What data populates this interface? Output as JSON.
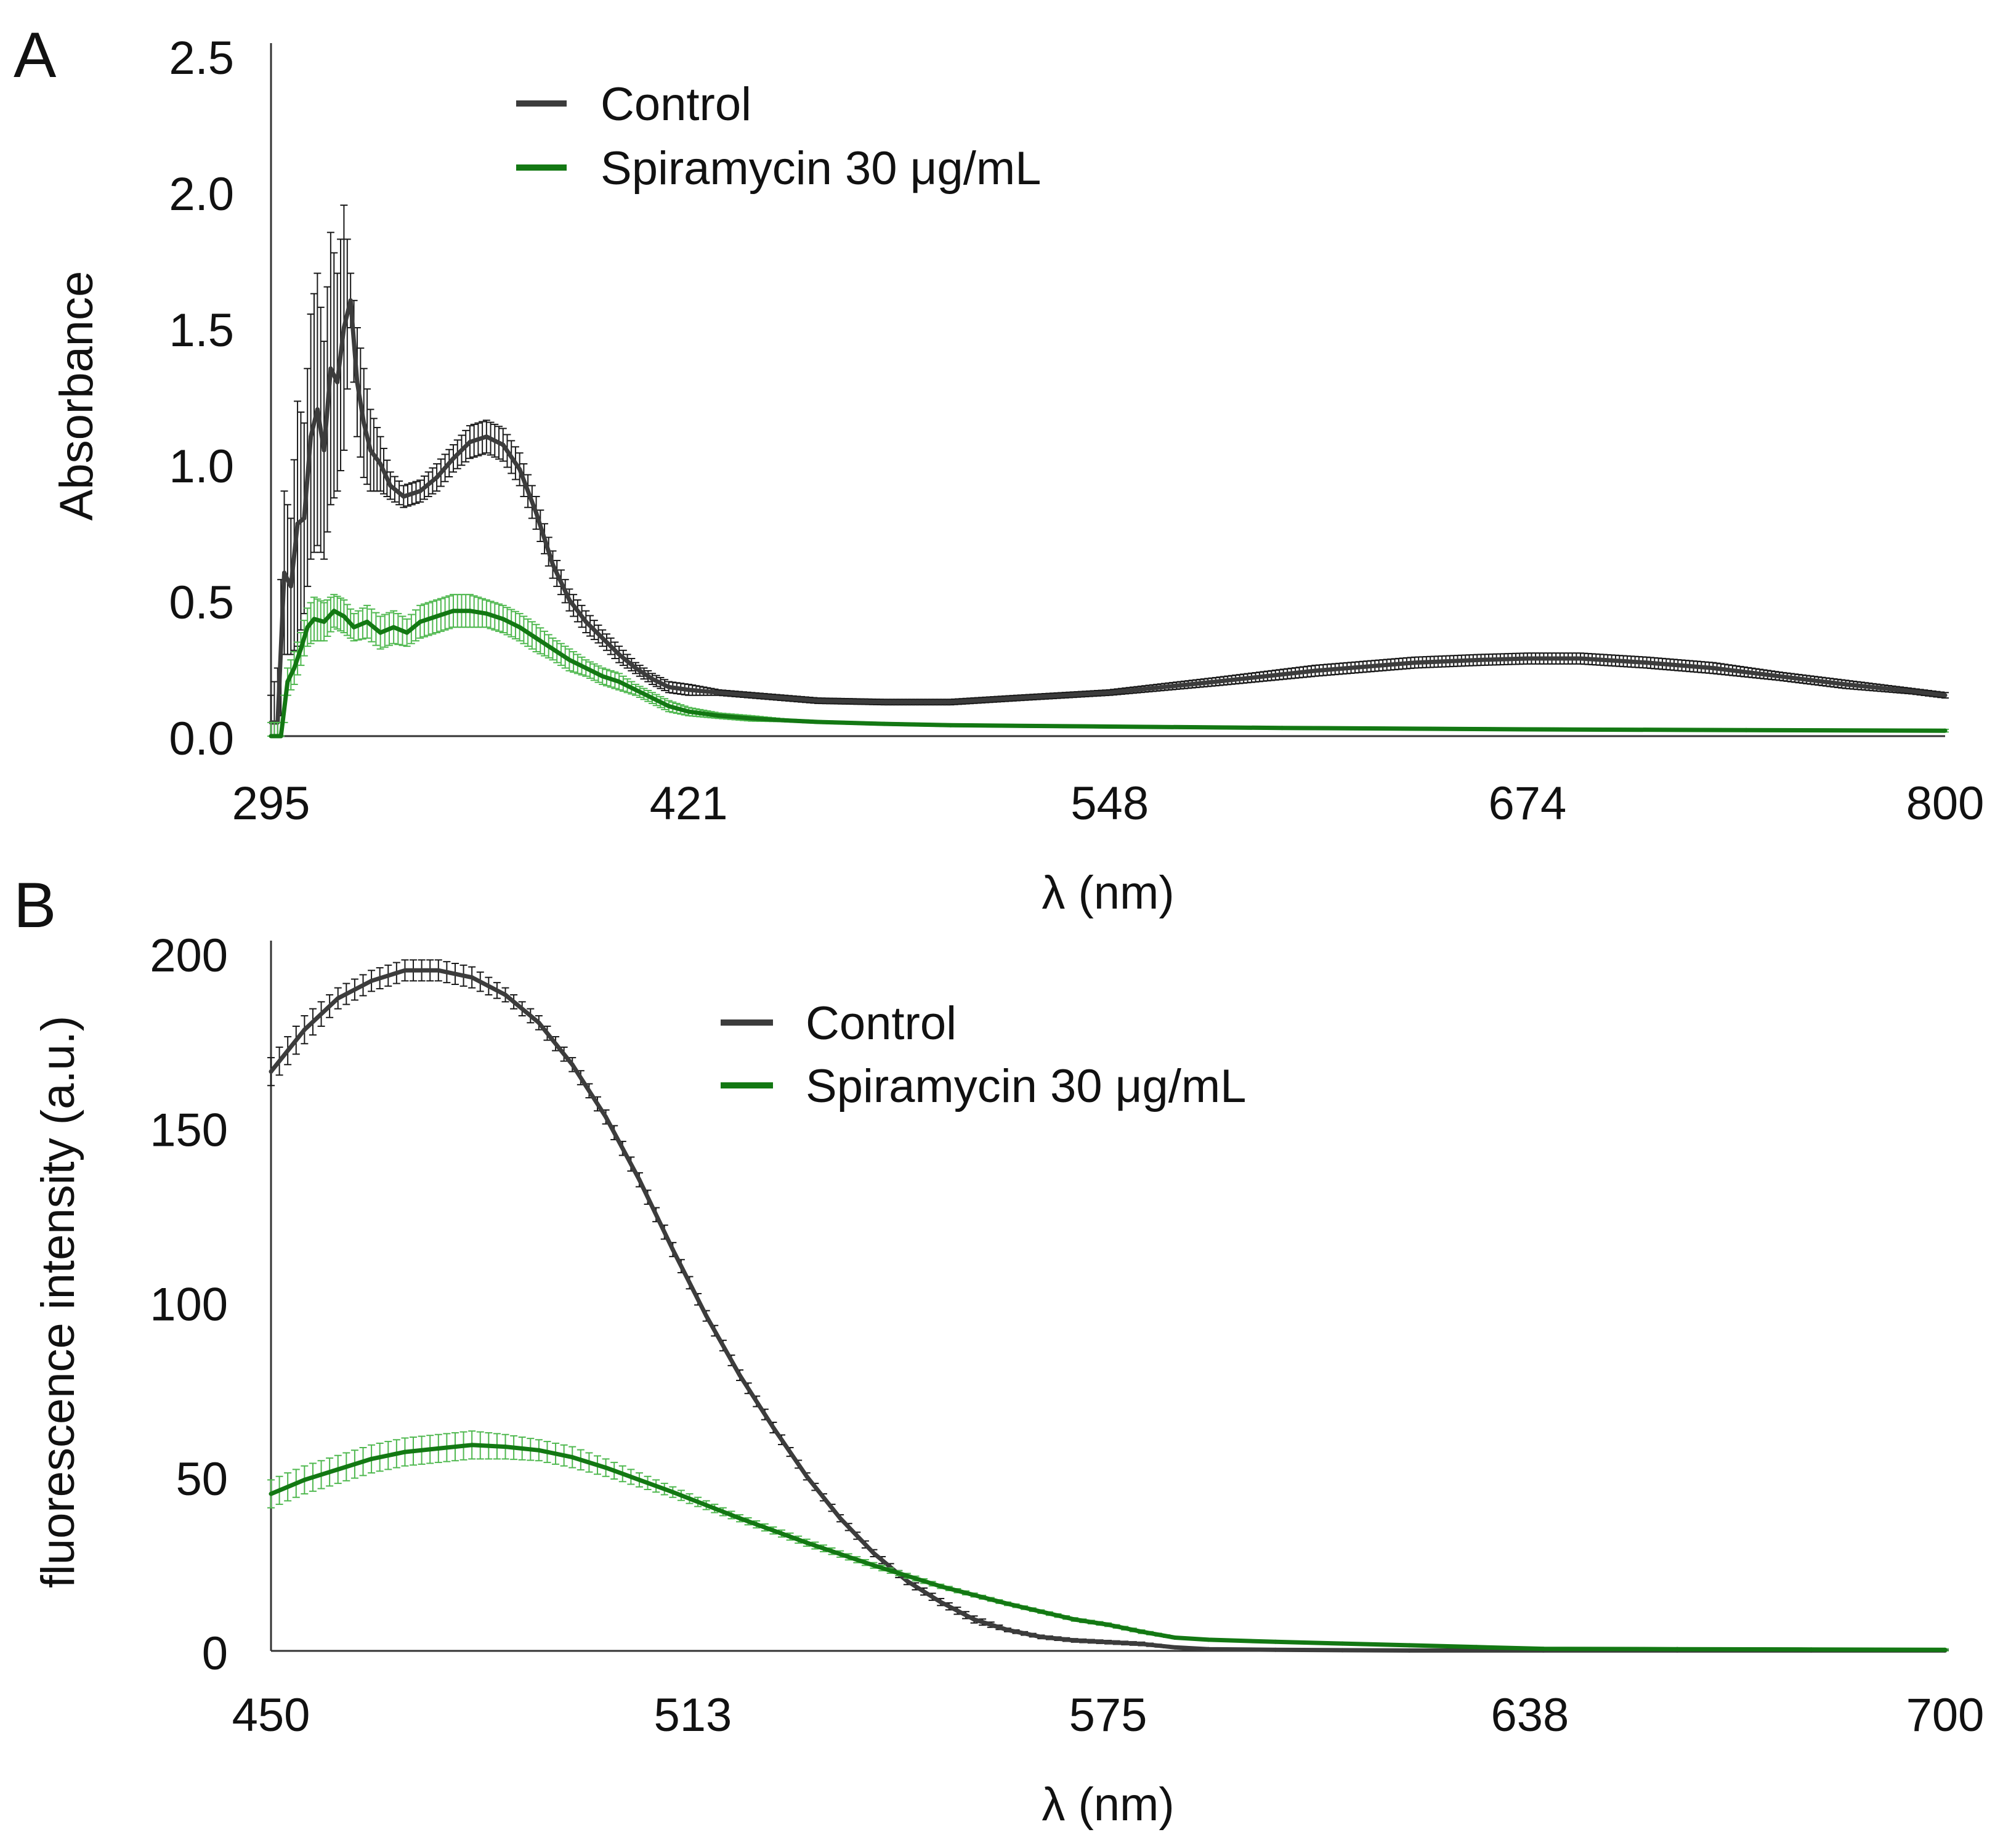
{
  "chart_data": [
    {
      "panel_label": "A",
      "type": "line",
      "xlabel": "λ (nm)",
      "ylabel": "Absorbance",
      "xlim": [
        295,
        800
      ],
      "ylim": [
        0.0,
        2.5
      ],
      "x_ticks": [
        295,
        421,
        548,
        674,
        800
      ],
      "x_tick_labels": [
        "295",
        "421",
        "548",
        "674",
        "800"
      ],
      "y_ticks": [
        0.0,
        0.5,
        1.0,
        1.5,
        2.0,
        2.5
      ],
      "y_tick_labels": [
        "0.0",
        "0.5",
        "1.0",
        "1.5",
        "2.0",
        "2.5"
      ],
      "legend": {
        "location": "top-center",
        "entries": [
          "Control",
          "Spiramycin 30 μg/mL"
        ]
      },
      "series": [
        {
          "name": "Control",
          "color": "#3c3c3c",
          "error_color": "#1a1a1a",
          "x": [
            295,
            297,
            299,
            301,
            303,
            305,
            307,
            309,
            311,
            313,
            315,
            317,
            319,
            321,
            323,
            325,
            328,
            331,
            335,
            340,
            345,
            350,
            355,
            360,
            365,
            370,
            375,
            380,
            385,
            390,
            395,
            400,
            405,
            410,
            415,
            421,
            430,
            440,
            450,
            460,
            480,
            500,
            520,
            548,
            580,
            610,
            640,
            660,
            674,
            690,
            710,
            730,
            750,
            770,
            790,
            800
          ],
          "y": [
            0.05,
            0.05,
            0.6,
            0.55,
            0.78,
            0.8,
            1.1,
            1.2,
            1.05,
            1.35,
            1.3,
            1.5,
            1.6,
            1.3,
            1.15,
            1.05,
            1.0,
            0.92,
            0.88,
            0.9,
            0.95,
            1.02,
            1.08,
            1.1,
            1.07,
            0.98,
            0.82,
            0.63,
            0.5,
            0.42,
            0.36,
            0.3,
            0.25,
            0.21,
            0.18,
            0.17,
            0.16,
            0.15,
            0.14,
            0.13,
            0.125,
            0.125,
            0.14,
            0.16,
            0.2,
            0.24,
            0.27,
            0.28,
            0.285,
            0.285,
            0.27,
            0.25,
            0.22,
            0.19,
            0.165,
            0.15
          ],
          "err": [
            0.1,
            0.2,
            0.3,
            0.25,
            0.45,
            0.35,
            0.45,
            0.5,
            0.4,
            0.5,
            0.4,
            0.45,
            0.1,
            0.2,
            0.2,
            0.15,
            0.1,
            0.05,
            0.04,
            0.04,
            0.05,
            0.05,
            0.06,
            0.06,
            0.06,
            0.06,
            0.06,
            0.05,
            0.04,
            0.04,
            0.03,
            0.03,
            0.02,
            0.02,
            0.02,
            0.02,
            0.01,
            0.01,
            0.01,
            0.01,
            0.01,
            0.01,
            0.01,
            0.01,
            0.015,
            0.02,
            0.02,
            0.02,
            0.02,
            0.02,
            0.02,
            0.02,
            0.015,
            0.015,
            0.01,
            0.01
          ]
        },
        {
          "name": "Spiramycin 30 μg/mL",
          "color": "#137813",
          "error_color": "#4fb84f",
          "x": [
            295,
            298,
            300,
            302,
            304,
            306,
            308,
            311,
            314,
            317,
            320,
            324,
            328,
            332,
            336,
            340,
            345,
            350,
            355,
            360,
            365,
            370,
            375,
            380,
            385,
            390,
            395,
            400,
            405,
            410,
            415,
            421,
            430,
            440,
            450,
            460,
            480,
            500,
            548,
            600,
            674,
            740,
            800
          ],
          "y": [
            0.0,
            0.0,
            0.2,
            0.25,
            0.32,
            0.4,
            0.43,
            0.42,
            0.46,
            0.44,
            0.4,
            0.42,
            0.38,
            0.4,
            0.38,
            0.42,
            0.44,
            0.46,
            0.46,
            0.45,
            0.43,
            0.4,
            0.36,
            0.32,
            0.28,
            0.25,
            0.22,
            0.2,
            0.17,
            0.14,
            0.11,
            0.09,
            0.075,
            0.065,
            0.058,
            0.052,
            0.045,
            0.04,
            0.035,
            0.03,
            0.025,
            0.022,
            0.02
          ],
          "err": [
            0.05,
            0.05,
            0.05,
            0.06,
            0.06,
            0.07,
            0.08,
            0.07,
            0.06,
            0.06,
            0.05,
            0.06,
            0.06,
            0.06,
            0.05,
            0.06,
            0.06,
            0.06,
            0.06,
            0.05,
            0.05,
            0.05,
            0.05,
            0.04,
            0.04,
            0.03,
            0.03,
            0.03,
            0.02,
            0.02,
            0.02,
            0.015,
            0.01,
            0.01,
            0.005,
            0.005,
            0.005,
            0.005,
            0.005,
            0.005,
            0.005,
            0.005,
            0.005
          ]
        }
      ]
    },
    {
      "panel_label": "B",
      "type": "line",
      "xlabel": "λ (nm)",
      "ylabel": "fluorescence intensity (a.u.)",
      "xlim": [
        450,
        700
      ],
      "ylim": [
        0,
        200
      ],
      "x_ticks": [
        450,
        513,
        575,
        638,
        700
      ],
      "x_tick_labels": [
        "450",
        "513",
        "575",
        "638",
        "700"
      ],
      "y_ticks": [
        0,
        50,
        100,
        150,
        200
      ],
      "y_tick_labels": [
        "0",
        "50",
        "100",
        "150",
        "200"
      ],
      "legend": {
        "location": "top-center",
        "entries": [
          "Control",
          "Spiramycin 30 μg/mL"
        ]
      },
      "series": [
        {
          "name": "Control",
          "color": "#3c3c3c",
          "error_color": "#1a1a1a",
          "x": [
            450,
            455,
            460,
            465,
            470,
            475,
            480,
            485,
            490,
            495,
            500,
            505,
            510,
            515,
            520,
            525,
            530,
            535,
            540,
            545,
            550,
            555,
            560,
            565,
            570,
            575,
            580,
            585,
            590,
            600,
            610,
            620,
            640,
            660,
            680,
            700
          ],
          "y": [
            166,
            178,
            187,
            192,
            195,
            195,
            193,
            188,
            180,
            168,
            153,
            135,
            115,
            96,
            79,
            64,
            50,
            38,
            28,
            20,
            14,
            9,
            6,
            4,
            3,
            2.5,
            2,
            1,
            0.5,
            0.3,
            0.2,
            0.1,
            0.1,
            0.1,
            0.1,
            0.1
          ],
          "err": [
            4,
            4,
            3,
            3,
            3,
            3,
            3,
            2,
            2,
            2,
            2,
            2,
            2,
            1.5,
            1.5,
            1.5,
            1,
            1,
            1,
            1,
            1,
            1,
            0.5,
            0.5,
            0.5,
            0.5,
            0.5,
            0.3,
            0.3,
            0.2,
            0.2,
            0.1,
            0.1,
            0.1,
            0.1,
            0.1
          ]
        },
        {
          "name": "Spiramycin 30 μg/mL",
          "color": "#137813",
          "error_color": "#4fb84f",
          "x": [
            450,
            455,
            460,
            465,
            470,
            475,
            480,
            485,
            490,
            495,
            500,
            505,
            510,
            520,
            530,
            540,
            550,
            560,
            570,
            575,
            580,
            585,
            590,
            600,
            610,
            620,
            630,
            640,
            660,
            680,
            700
          ],
          "y": [
            45,
            49,
            52,
            55,
            57,
            58,
            59,
            58.5,
            57.5,
            55.5,
            52.5,
            49,
            45.5,
            38,
            31,
            24.5,
            18.5,
            13.5,
            9,
            7.5,
            5.5,
            3.8,
            3.2,
            2.6,
            2.1,
            1.6,
            1.1,
            0.6,
            0.5,
            0.4,
            0.3
          ],
          "err": [
            4,
            4,
            4,
            4,
            4,
            4,
            4,
            3.5,
            3,
            3,
            2.5,
            2,
            1.5,
            1,
            1,
            0.8,
            0.6,
            0.5,
            0.5,
            0.5,
            0.5,
            0.3,
            0.3,
            0.3,
            0.3,
            0.3,
            0.3,
            0.3,
            0.3,
            0.3,
            0.3
          ]
        }
      ]
    }
  ]
}
